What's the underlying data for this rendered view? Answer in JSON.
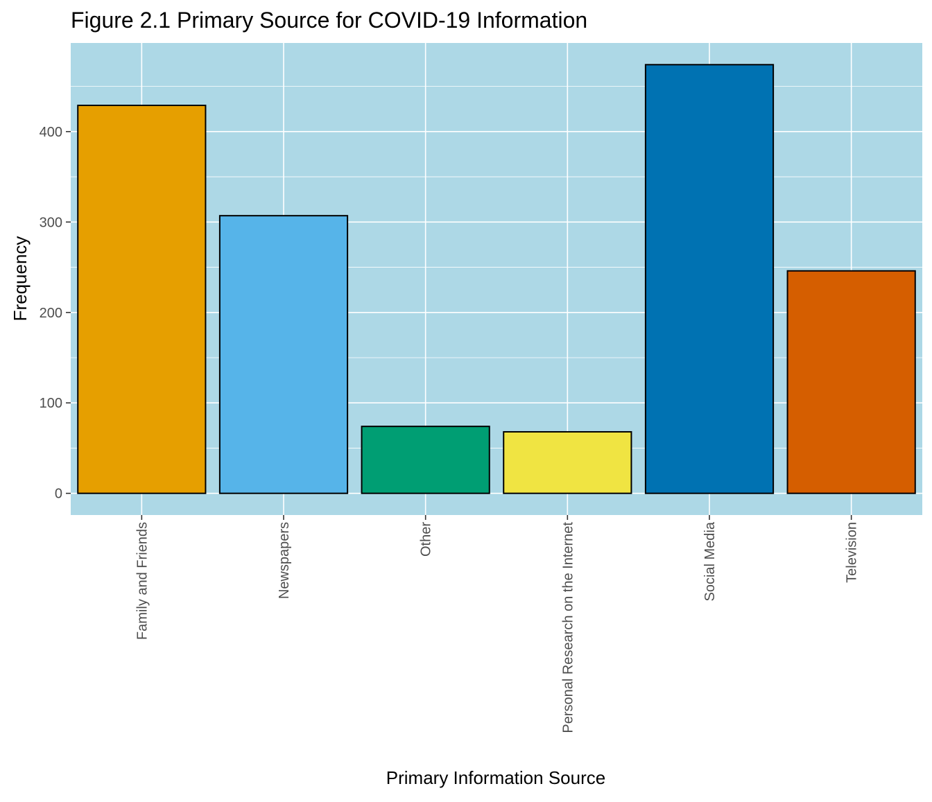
{
  "chart_data": {
    "type": "bar",
    "title": "Figure 2.1 Primary Source for COVID-19 Information",
    "xlabel": "Primary Information Source",
    "ylabel": "Frequency",
    "categories": [
      "Family and Friends",
      "Newspapers",
      "Other",
      "Personal Research on the Internet",
      "Social Media",
      "Television"
    ],
    "values": [
      429,
      307,
      74,
      68,
      474,
      246
    ],
    "colors": [
      "#E69F00",
      "#56B4E9",
      "#009E73",
      "#F0E442",
      "#0072B2",
      "#D55E00"
    ],
    "ylim": [
      -24,
      498
    ],
    "yticks": [
      0,
      100,
      200,
      300,
      400
    ],
    "panel_background": "#ADD8E6",
    "grid": true,
    "legend": "none"
  }
}
